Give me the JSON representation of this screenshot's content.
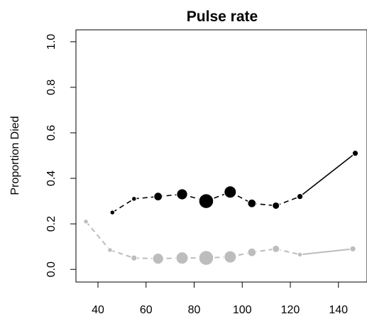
{
  "chart_data": {
    "type": "line",
    "title": "Pulse rate",
    "xlabel": "",
    "ylabel": "Proportion Died",
    "xlim": [
      31,
      151
    ],
    "ylim": [
      -0.04,
      1.04
    ],
    "xticks": [
      40,
      60,
      80,
      100,
      120,
      140
    ],
    "yticks": [
      0.0,
      0.2,
      0.4,
      0.6,
      0.8,
      1.0
    ],
    "grid": false,
    "legend": "none",
    "series": [
      {
        "color": "#000000",
        "style": "dashed-with-points",
        "x": [
          46,
          55,
          65,
          75,
          85,
          95,
          104,
          114,
          124,
          147
        ],
        "y": [
          0.25,
          0.31,
          0.32,
          0.33,
          0.3,
          0.34,
          0.29,
          0.28,
          0.32,
          0.51
        ],
        "point_sizes": [
          1.0,
          1.0,
          2.5,
          3.5,
          5.0,
          4.0,
          2.5,
          2.0,
          1.5,
          1.5
        ]
      },
      {
        "color": "#bdbdbd",
        "style": "dashed-with-points",
        "x": [
          35,
          45,
          55,
          65,
          75,
          85,
          95,
          104,
          114,
          124,
          146
        ],
        "y": [
          0.21,
          0.085,
          0.05,
          0.047,
          0.05,
          0.05,
          0.055,
          0.075,
          0.09,
          0.065,
          0.09
        ],
        "point_sizes": [
          1.0,
          1.0,
          1.5,
          3.5,
          4.0,
          5.0,
          4.0,
          2.5,
          2.0,
          1.0,
          1.5
        ]
      }
    ]
  }
}
